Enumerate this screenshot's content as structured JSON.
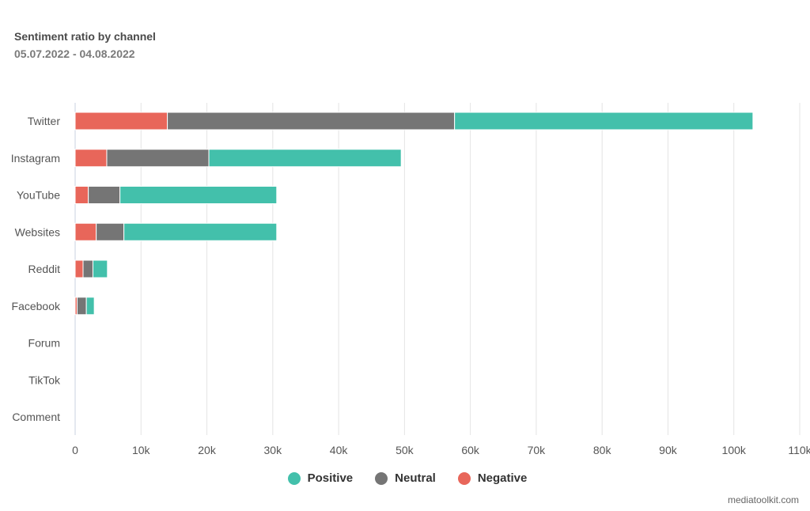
{
  "colors": {
    "positive": "#43c0ab",
    "neutral": "#757575",
    "negative": "#e8665a",
    "grid": "#e4e4e4",
    "axis": "#c8d0e0"
  },
  "credit": "mediatoolkit.com",
  "chart_data": {
    "type": "bar",
    "orientation": "horizontal",
    "stacked": true,
    "title": "Sentiment ratio by channel",
    "subtitle": "05.07.2022 - 04.08.2022",
    "xlabel": "",
    "ylabel": "",
    "xlim": [
      0,
      110000
    ],
    "xticks": [
      0,
      10000,
      20000,
      30000,
      40000,
      50000,
      60000,
      70000,
      80000,
      90000,
      100000,
      110000
    ],
    "xtick_labels": [
      "0",
      "10k",
      "20k",
      "30k",
      "40k",
      "50k",
      "60k",
      "70k",
      "80k",
      "90k",
      "100k",
      "110k"
    ],
    "grid": true,
    "legend_position": "bottom-center",
    "categories": [
      "Twitter",
      "Instagram",
      "YouTube",
      "Websites",
      "Reddit",
      "Facebook",
      "Forum",
      "TikTok",
      "Comment"
    ],
    "series": [
      {
        "name": "Negative",
        "color_key": "negative",
        "values": [
          14000,
          4800,
          2000,
          3200,
          1200,
          300,
          0,
          0,
          0
        ]
      },
      {
        "name": "Neutral",
        "color_key": "neutral",
        "values": [
          43600,
          15500,
          4800,
          4200,
          1500,
          1400,
          0,
          0,
          0
        ]
      },
      {
        "name": "Positive",
        "color_key": "positive",
        "values": [
          45300,
          29200,
          23800,
          23200,
          2200,
          1200,
          0,
          0,
          0
        ]
      }
    ],
    "legend": [
      {
        "name": "Positive",
        "color_key": "positive"
      },
      {
        "name": "Neutral",
        "color_key": "neutral"
      },
      {
        "name": "Negative",
        "color_key": "negative"
      }
    ]
  }
}
